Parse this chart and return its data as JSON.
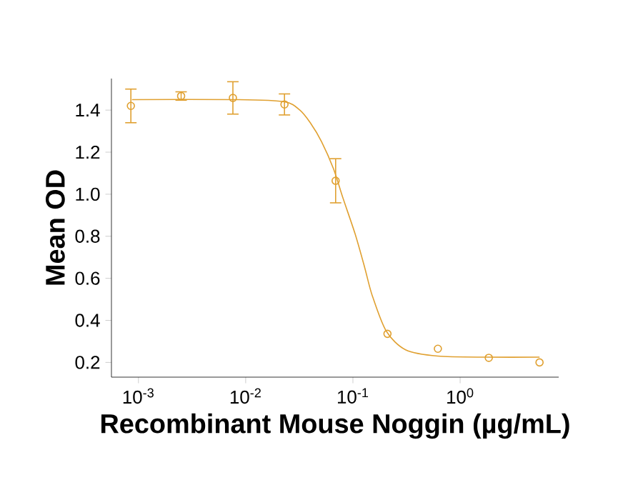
{
  "chart_data": {
    "type": "scatter",
    "xlabel": "Recombinant Mouse Noggin (µg/mL)",
    "ylabel": "Mean OD",
    "log": "x",
    "grid": false,
    "xlim": [
      0.00056,
      8.3
    ],
    "ylim": [
      0.13,
      1.55
    ],
    "xticks": [
      {
        "value": 0.001,
        "label": "10$^{-3}$"
      },
      {
        "value": 0.01,
        "label": "10$^{-2}$"
      },
      {
        "value": 0.1,
        "label": "10$^{-1}$"
      },
      {
        "value": 1,
        "label": "10$^{0}$"
      }
    ],
    "yticks": [
      {
        "value": 0.2,
        "label": "0.2"
      },
      {
        "value": 0.4,
        "label": "0.4"
      },
      {
        "value": 0.6,
        "label": "0.6"
      },
      {
        "value": 0.8,
        "label": "0.8"
      },
      {
        "value": 1.0,
        "label": "1.0"
      },
      {
        "value": 1.2,
        "label": "1.2"
      },
      {
        "value": 1.4,
        "label": "1.4"
      }
    ],
    "series": [
      {
        "color": "#e0a030",
        "marker": "circle",
        "x": [
          0.00085,
          0.0025,
          0.0076,
          0.023,
          0.069,
          0.21,
          0.62,
          1.85,
          5.5
        ],
        "values": [
          1.42,
          1.467,
          1.458,
          1.427,
          1.064,
          0.336,
          0.265,
          0.222,
          0.2
        ],
        "errors": [
          0.08,
          0.02,
          0.077,
          0.05,
          0.105,
          null,
          null,
          null,
          null
        ]
      },
      {
        "type": "line",
        "color": "#e0a030",
        "marker": "none",
        "line_style": "solid",
        "x": [
          0.00087,
          0.0086,
          0.023,
          0.032,
          0.04,
          0.051,
          0.066,
          0.081,
          0.105,
          0.129,
          0.151,
          0.204,
          0.31,
          0.62,
          1.8,
          5.5
        ],
        "values": [
          1.45,
          1.45,
          1.44,
          1.4,
          1.34,
          1.25,
          1.12,
          0.98,
          0.81,
          0.65,
          0.52,
          0.35,
          0.26,
          0.23,
          0.225,
          0.225
        ]
      }
    ]
  }
}
